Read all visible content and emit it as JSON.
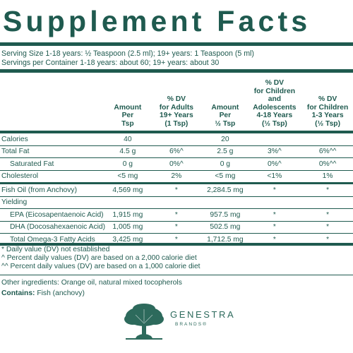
{
  "title": "Supplement Facts",
  "serving_size": "Serving Size 1-18 years: ½  Teaspoon (2.5 ml); 19+ years: 1 Teaspoon (5 ml)",
  "servings_per_container": "Servings per Container 1-18 years: about 60; 19+ years: about 30",
  "headers": [
    "",
    "Amount\nPer\nTsp",
    "% DV\nfor Adults\n19+ Years\n(1 Tsp)",
    "Amount\nPer\n½ Tsp",
    "% DV\nfor Children and\nAdolescents\n4-18 Years\n(½ Tsp)",
    "% DV\nfor Children\n1-3 Years\n(½ Tsp)"
  ],
  "rows": [
    {
      "name": "Calories",
      "a1": "40",
      "d1": "",
      "a2": "20",
      "d2": "",
      "d3": ""
    },
    {
      "name": "Total Fat",
      "a1": "4.5 g",
      "d1": "6%^",
      "a2": "2.5 g",
      "d2": "3%^",
      "d3": "6%^^"
    },
    {
      "name": "Saturated Fat",
      "a1": "0 g",
      "d1": "0%^",
      "a2": "0 g",
      "d2": "0%^",
      "d3": "0%^^"
    },
    {
      "name": "Cholesterol",
      "a1": "<5 mg",
      "d1": "2%",
      "a2": "<5 mg",
      "d2": "<1%",
      "d3": "1%"
    },
    {
      "name": "Fish Oil (from Anchovy)",
      "a1": "4,569 mg",
      "d1": "*",
      "a2": "2,284.5 mg",
      "d2": "*",
      "d3": "*"
    },
    {
      "name": "Yielding",
      "a1": "",
      "d1": "",
      "a2": "",
      "d2": "",
      "d3": ""
    },
    {
      "name": "EPA (Eicosapentaenoic Acid)",
      "a1": "1,915 mg",
      "d1": "*",
      "a2": "957.5 mg",
      "d2": "*",
      "d3": "*"
    },
    {
      "name": "DHA (Docosahexaenoic Acid)",
      "a1": "1,005 mg",
      "d1": "*",
      "a2": "502.5 mg",
      "d2": "*",
      "d3": "*"
    },
    {
      "name": "Total Omega-3 Fatty Acids",
      "a1": "3,425 mg",
      "d1": "*",
      "a2": "1,712.5 mg",
      "d2": "*",
      "d3": "*"
    }
  ],
  "footnotes": [
    "*  Daily value (DV) not established",
    "^  Percent daily values (DV) are based on a 2,000 calorie diet",
    "^^ Percent daily values (DV) are based on a 1,000 calorie diet"
  ],
  "other_ingredients": "Other ingredients: Orange oil, natural mixed tocopherols",
  "contains_label": "Contains:",
  "contains_value": " Fish (anchovy)",
  "brand": {
    "name": "GENESTRA",
    "sub": "BRANDS®",
    "color": "#2d6a5c"
  }
}
